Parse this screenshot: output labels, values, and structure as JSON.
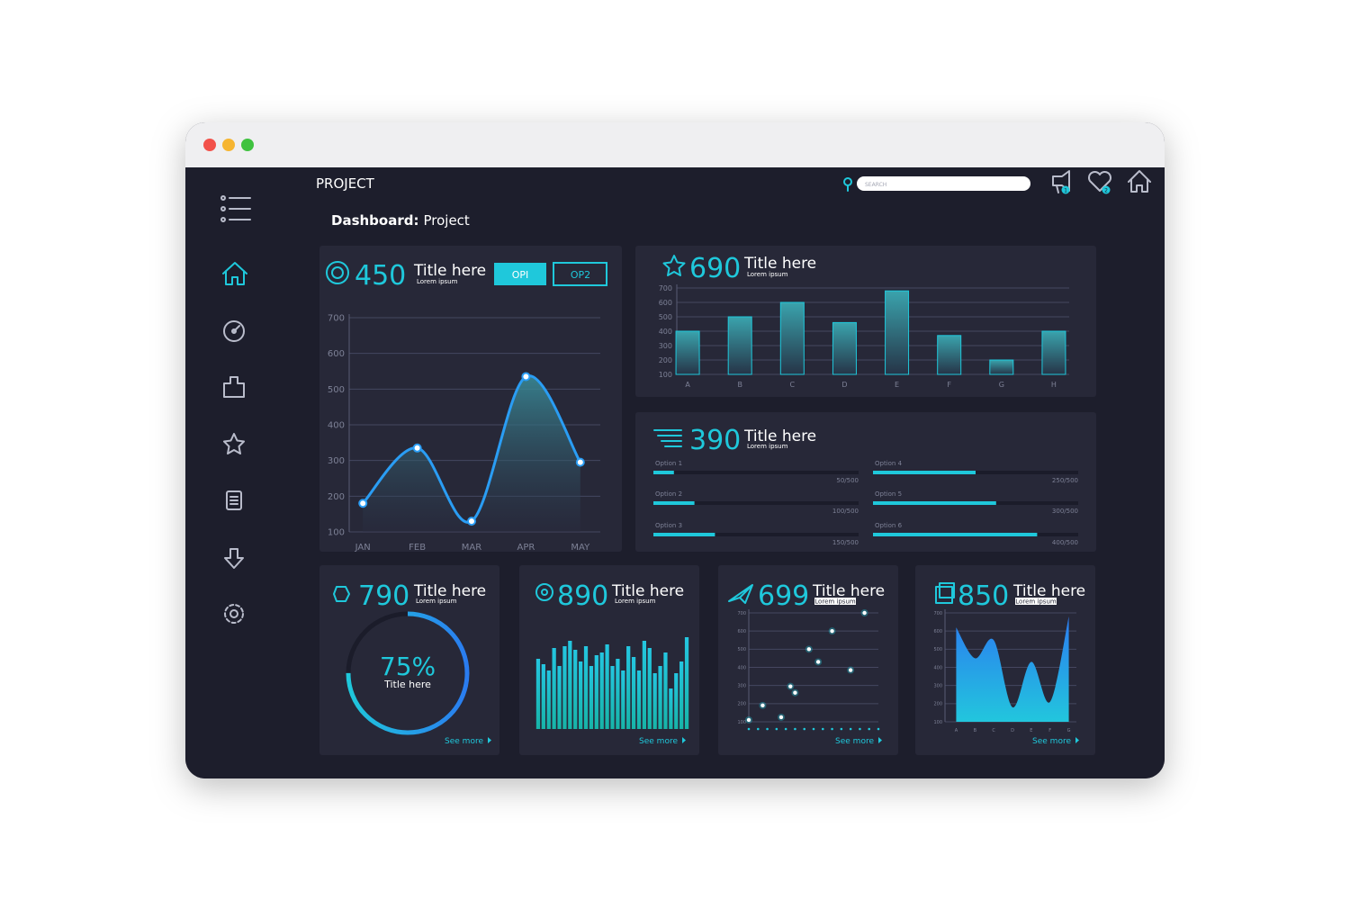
{
  "header": {
    "title": "PROJECT",
    "search": "SEARCH",
    "badges": [
      "1",
      "2"
    ]
  },
  "breadcrumb": {
    "label": "Dashboard:",
    "page": "Project"
  },
  "panels": [
    {
      "value": "450",
      "title": "Title here",
      "subtitle": "Lorem ipsum",
      "buttons": [
        "OPI",
        "OP2"
      ],
      "chart": {
        "type": "line",
        "categories": [
          "JAN",
          "FEB",
          "MAR",
          "APR",
          "MAY"
        ],
        "values": [
          180,
          335,
          130,
          535,
          295
        ],
        "ylim": [
          100,
          700
        ],
        "yticks": [
          100,
          200,
          300,
          400,
          500,
          600,
          700
        ],
        "color": "#2a9df4"
      }
    },
    {
      "value": "690",
      "title": "Title here",
      "subtitle": "Lorem ipsum",
      "chart": {
        "type": "bar",
        "categories": [
          "A",
          "B",
          "C",
          "D",
          "E",
          "F",
          "G",
          "H"
        ],
        "values": [
          400,
          500,
          600,
          460,
          680,
          370,
          200,
          400
        ],
        "ylim": [
          100,
          700
        ],
        "yticks": [
          100,
          200,
          300,
          400,
          500,
          600,
          700
        ],
        "color": "#1fc8db"
      }
    },
    {
      "value": "390",
      "title": "Title here",
      "subtitle": "Lorem ipsum",
      "chart": {
        "type": "progress",
        "categories": [
          "Option 1",
          "Option 2",
          "Option 3",
          "Option 4",
          "Option 5",
          "Option 6"
        ],
        "values": [
          50,
          100,
          150,
          250,
          300,
          400
        ],
        "value_labels": [
          "50/500",
          "100/500",
          "150/500",
          "250/500",
          "300/500",
          "400/500"
        ],
        "max": 500,
        "color": "#1fc8db"
      }
    },
    {
      "value": "790",
      "title": "Title here",
      "subtitle": "Lorem ipsum",
      "link": "See more",
      "chart": {
        "type": "donut",
        "value": 75,
        "value_label": "75%",
        "title": "Title here",
        "color": "#1fc8db"
      }
    },
    {
      "value": "890",
      "title": "Title here",
      "subtitle": "Lorem ipsum",
      "link": "See more",
      "chart": {
        "type": "bar",
        "values": [
          78,
          72,
          65,
          90,
          70,
          92,
          98,
          88,
          75,
          92,
          70,
          82,
          85,
          94,
          70,
          78,
          65,
          92,
          80,
          65,
          98,
          90,
          62,
          70,
          85,
          45,
          62,
          75,
          102
        ],
        "ylim": [
          0,
          110
        ],
        "color": "#1fc8db"
      }
    },
    {
      "value": "699",
      "title": "Title here",
      "subtitle": "Lorem ipsum",
      "link": "See more",
      "chart": {
        "type": "scatter",
        "x": [
          0,
          1.5,
          3.5,
          4.5,
          5,
          6.5,
          7.5,
          9,
          11,
          12.5
        ],
        "values": [
          110,
          190,
          125,
          295,
          260,
          500,
          430,
          600,
          385,
          700
        ],
        "xlim": [
          0,
          14
        ],
        "xticks": [
          0,
          1,
          2,
          3,
          4,
          5,
          6,
          7,
          8,
          9,
          10,
          11,
          12,
          13,
          14
        ],
        "ylim": [
          100,
          700
        ],
        "yticks": [
          100,
          200,
          300,
          400,
          500,
          600,
          700
        ],
        "color": "#1fc8db"
      }
    },
    {
      "value": "850",
      "title": "Title here",
      "subtitle": "Lorem ipsum",
      "link": "See more",
      "chart": {
        "type": "area",
        "categories": [
          "A",
          "B",
          "C",
          "D",
          "E",
          "F",
          "G"
        ],
        "values": [
          620,
          450,
          550,
          180,
          430,
          210,
          680
        ],
        "ylim": [
          100,
          700
        ],
        "yticks": [
          100,
          200,
          300,
          400,
          500,
          600,
          700
        ],
        "color": "#1fc8db"
      }
    }
  ]
}
